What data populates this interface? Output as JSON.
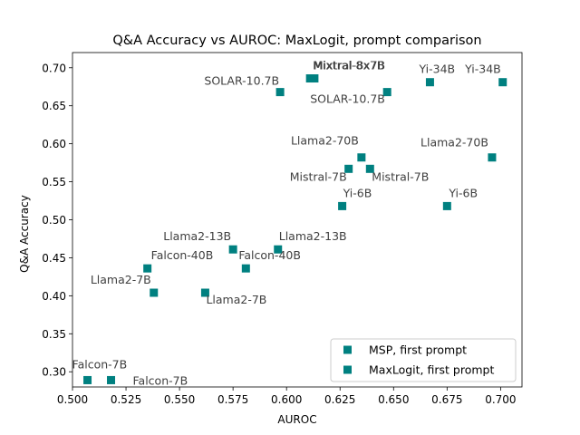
{
  "chart_data": {
    "type": "scatter",
    "title": "Q&A Accuracy vs AUROC: MaxLogit, prompt comparison",
    "xlabel": "AUROC",
    "ylabel": "Q&A Accuracy",
    "xlim": [
      0.5,
      0.71
    ],
    "ylim": [
      0.28,
      0.72
    ],
    "xticks": [
      "0.500",
      "0.525",
      "0.550",
      "0.575",
      "0.600",
      "0.625",
      "0.650",
      "0.675",
      "0.700"
    ],
    "yticks": [
      "0.30",
      "0.35",
      "0.40",
      "0.45",
      "0.50",
      "0.55",
      "0.60",
      "0.65",
      "0.70"
    ],
    "grid": false,
    "legend_position": "lower-right",
    "marker_color": "#008080",
    "series": [
      {
        "name": "MSP, first prompt",
        "points": [
          {
            "label": "Mixtral-8x7B",
            "x": 0.611,
            "y": 0.686
          },
          {
            "label": "SOLAR-10.7B",
            "x": 0.597,
            "y": 0.668
          },
          {
            "label": "Yi-34B",
            "x": 0.667,
            "y": 0.681
          },
          {
            "label": "Llama2-70B",
            "x": 0.635,
            "y": 0.582
          },
          {
            "label": "Mistral-7B",
            "x": 0.629,
            "y": 0.567
          },
          {
            "label": "Yi-6B",
            "x": 0.626,
            "y": 0.518
          },
          {
            "label": "Llama2-13B",
            "x": 0.575,
            "y": 0.461
          },
          {
            "label": "Falcon-40B",
            "x": 0.535,
            "y": 0.436
          },
          {
            "label": "Llama2-7B",
            "x": 0.538,
            "y": 0.404
          },
          {
            "label": "Falcon-7B",
            "x": 0.507,
            "y": 0.289
          }
        ]
      },
      {
        "name": "MaxLogit, first prompt",
        "points": [
          {
            "label": "Mixtral-8x7B",
            "x": 0.613,
            "y": 0.686
          },
          {
            "label": "SOLAR-10.7B",
            "x": 0.647,
            "y": 0.668
          },
          {
            "label": "Yi-34B",
            "x": 0.701,
            "y": 0.681
          },
          {
            "label": "Llama2-70B",
            "x": 0.696,
            "y": 0.582
          },
          {
            "label": "Mistral-7B",
            "x": 0.639,
            "y": 0.567
          },
          {
            "label": "Yi-6B",
            "x": 0.675,
            "y": 0.518
          },
          {
            "label": "Llama2-13B",
            "x": 0.596,
            "y": 0.461
          },
          {
            "label": "Falcon-40B",
            "x": 0.581,
            "y": 0.436
          },
          {
            "label": "Llama2-7B",
            "x": 0.562,
            "y": 0.404
          },
          {
            "label": "Falcon-7B",
            "x": 0.518,
            "y": 0.289
          }
        ]
      }
    ]
  }
}
